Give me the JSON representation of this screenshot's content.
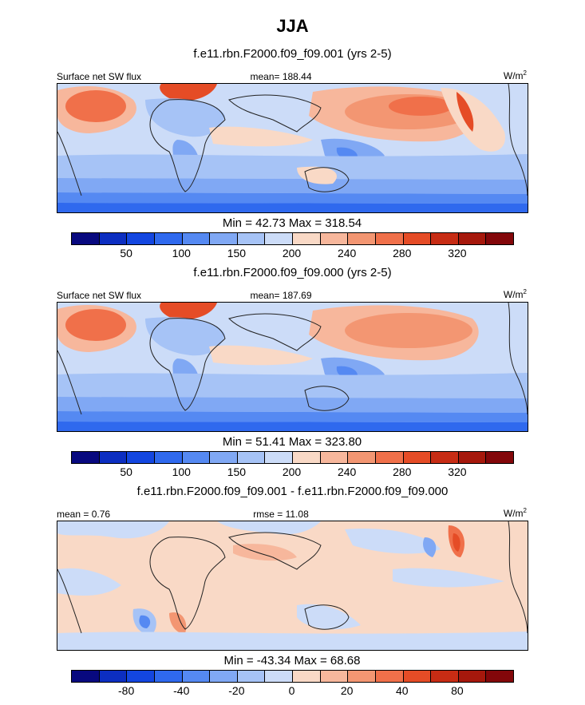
{
  "figure": {
    "title": "JJA"
  },
  "palettes": {
    "blue_red": [
      "#08097f",
      "#0c2ec1",
      "#1346e0",
      "#2f69ee",
      "#5589f2",
      "#80a8f4",
      "#a6c3f6",
      "#ccdcf8",
      "#f9d9c6",
      "#f7b79c",
      "#f39672",
      "#f0704a",
      "#e54c26",
      "#c72c14",
      "#a6180c",
      "#83070a"
    ]
  },
  "panels": [
    {
      "run_title": "f.e11.rbn.F2000.f09_f09.001 (yrs 2-5)",
      "left_label": "Surface net SW flux",
      "center_label": "mean= 188.44",
      "units": "W/m",
      "units_exp": "2",
      "minmax": "Min =  42.73 Max = 318.54",
      "ticks": [
        "50",
        "100",
        "150",
        "200",
        "240",
        "280",
        "320"
      ]
    },
    {
      "run_title": "f.e11.rbn.F2000.f09_f09.000 (yrs 2-5)",
      "left_label": "Surface net SW flux",
      "center_label": "mean= 187.69",
      "units": "W/m",
      "units_exp": "2",
      "minmax": "Min =  51.41 Max = 323.80",
      "ticks": [
        "50",
        "100",
        "150",
        "200",
        "240",
        "280",
        "320"
      ]
    },
    {
      "run_title": "f.e11.rbn.F2000.f09_f09.001 - f.e11.rbn.F2000.f09_f09.000",
      "left_label": "mean =   0.76",
      "center_label": "rmse =  11.08",
      "units": "W/m",
      "units_exp": "2",
      "minmax": "Min = -43.34 Max =  68.68",
      "ticks": [
        "-80",
        "-40",
        "-20",
        "0",
        "20",
        "40",
        "80"
      ]
    }
  ],
  "chart_data": [
    {
      "type": "heatmap",
      "title": "Surface net SW flux",
      "subtitle": "f.e11.rbn.F2000.f09_f09.001 (yrs 2-5)",
      "units": "W/m2",
      "mean": 188.44,
      "min": 42.73,
      "max": 318.54,
      "colorbar_labels": [
        50,
        100,
        150,
        200,
        240,
        280,
        320
      ]
    },
    {
      "type": "heatmap",
      "title": "Surface net SW flux",
      "subtitle": "f.e11.rbn.F2000.f09_f09.000 (yrs 2-5)",
      "units": "W/m2",
      "mean": 187.69,
      "min": 51.41,
      "max": 323.8,
      "colorbar_labels": [
        50,
        100,
        150,
        200,
        240,
        280,
        320
      ]
    },
    {
      "type": "heatmap",
      "title": "f.e11.rbn.F2000.f09_f09.001 - f.e11.rbn.F2000.f09_f09.000",
      "units": "W/m2",
      "mean": 0.76,
      "rmse": 11.08,
      "min": -43.34,
      "max": 68.68,
      "colorbar_labels": [
        -80,
        -40,
        -20,
        0,
        20,
        40,
        80
      ]
    }
  ]
}
